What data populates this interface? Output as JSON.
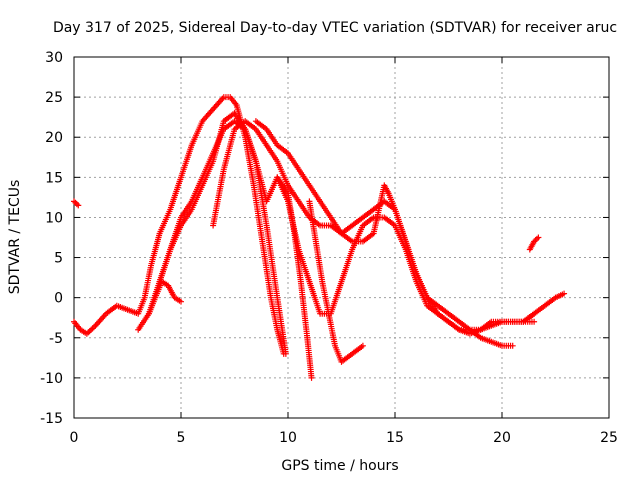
{
  "chart_data": {
    "type": "scatter",
    "title": "Day 317 of 2025, Sidereal Day-to-day VTEC variation (SDTVAR) for receiver aruc",
    "xlabel": "GPS time / hours",
    "ylabel": "SDTVAR / TECUs",
    "xlim": [
      0,
      25
    ],
    "ylim": [
      -15,
      30
    ],
    "xticks": [
      0,
      5,
      10,
      15,
      20,
      25
    ],
    "yticks": [
      -15,
      -10,
      -5,
      0,
      5,
      10,
      15,
      20,
      25,
      30
    ],
    "grid": true,
    "marker": "+",
    "color": "#ff0000",
    "series": [
      {
        "name": "s1",
        "x": [
          0.0,
          0.3,
          0.6,
          1.0,
          1.5,
          2.0,
          2.5,
          3.0,
          3.3,
          3.6,
          4.0,
          4.5,
          5.0,
          5.5,
          6.0,
          6.5,
          7.0,
          7.3,
          7.6,
          8.0,
          8.4,
          8.8,
          9.2,
          9.5,
          9.8
        ],
        "y": [
          -3,
          -4,
          -4.5,
          -3.5,
          -2,
          -1,
          -1.5,
          -2,
          0,
          4,
          8,
          11,
          15,
          19,
          22,
          23.5,
          25,
          25,
          24,
          20,
          14,
          7,
          0,
          -4,
          -7
        ]
      },
      {
        "name": "s2",
        "x": [
          3.0,
          3.5,
          4.0,
          4.5,
          5.0,
          5.5,
          6.0,
          6.5,
          7.0,
          7.5,
          8.0,
          8.5,
          9.0,
          9.5,
          10.0,
          10.3,
          10.6,
          10.9,
          11.1
        ],
        "y": [
          -4,
          -2,
          2,
          6,
          10,
          12,
          15,
          18,
          21,
          22,
          21,
          17,
          12,
          15,
          13,
          8,
          2,
          -5,
          -10
        ]
      },
      {
        "name": "s3",
        "x": [
          6.5,
          7.0,
          7.5,
          8.0,
          8.5,
          9.0,
          9.5,
          10.0,
          10.5,
          11.0,
          11.5,
          12.0,
          12.5,
          13.0,
          13.5,
          14.0,
          14.5,
          15.0,
          15.5,
          16.0,
          16.5,
          17.0,
          17.5,
          18.0,
          18.5,
          19.0,
          19.5,
          20.0,
          20.5,
          21.0,
          21.5
        ],
        "y": [
          9,
          16,
          21,
          22,
          21,
          19,
          17,
          14,
          12,
          10,
          9,
          9,
          8,
          9,
          10,
          11,
          12,
          11,
          7,
          3,
          0,
          -2,
          -3,
          -4,
          -4,
          -4,
          -3,
          -3,
          -3,
          -3,
          -2
        ]
      },
      {
        "name": "s4",
        "x": [
          8.5,
          9.0,
          9.5,
          10.0,
          10.5,
          11.0,
          11.5,
          12.0,
          12.5,
          13.0,
          13.5,
          14.0,
          14.5,
          14.7,
          15.0,
          15.5,
          16.0,
          16.5,
          17.0,
          17.5,
          18.0,
          18.5,
          19.0,
          19.5,
          20.0,
          20.5
        ],
        "y": [
          22,
          21,
          19,
          18,
          16,
          14,
          12,
          10,
          8,
          7,
          7,
          8,
          14,
          13,
          11,
          7,
          3,
          0,
          -1,
          -2,
          -3,
          -4,
          -5,
          -5.5,
          -6,
          -6
        ]
      },
      {
        "name": "s5",
        "x": [
          9.5,
          10.0,
          10.5,
          11.0,
          11.5,
          12.0,
          12.5,
          13.0,
          13.5,
          14.0,
          14.5,
          15.0,
          15.5,
          16.0,
          16.5,
          17.0,
          17.5,
          18.0,
          18.5,
          19.0,
          19.5,
          20.0,
          20.5,
          21.0,
          21.5
        ],
        "y": [
          15,
          12,
          6,
          2,
          -2,
          -2,
          2,
          6,
          9,
          10,
          10,
          9,
          6,
          2,
          -1,
          -2,
          -3,
          -4,
          -4.5,
          -4,
          -3.5,
          -3,
          -3,
          -3,
          -3
        ]
      },
      {
        "name": "s6",
        "x": [
          11.0,
          11.3,
          11.6,
          11.9,
          12.2,
          12.5,
          13.0,
          13.5
        ],
        "y": [
          12,
          7,
          2,
          -2,
          -6,
          -8,
          -7,
          -6
        ]
      },
      {
        "name": "s7",
        "x": [
          0.0,
          0.2
        ],
        "y": [
          12,
          11.5
        ]
      },
      {
        "name": "s8",
        "x": [
          21.3,
          21.5,
          21.7
        ],
        "y": [
          6,
          7,
          7.5
        ]
      },
      {
        "name": "s9",
        "x": [
          21.0,
          21.5,
          22.0,
          22.5,
          22.9
        ],
        "y": [
          -3,
          -2,
          -1,
          0,
          0.5
        ]
      },
      {
        "name": "s10",
        "x": [
          3.5,
          3.8,
          4.1,
          4.4,
          4.7,
          5.0
        ],
        "y": [
          -2,
          0,
          2,
          1.5,
          0,
          -0.5
        ]
      },
      {
        "name": "s11",
        "x": [
          4.0,
          4.5,
          5.0,
          5.5,
          6.0,
          6.5,
          7.0,
          7.5,
          8.0,
          8.5,
          9.0,
          9.5,
          9.9
        ],
        "y": [
          2,
          6,
          9,
          11,
          14,
          17,
          22,
          23,
          21,
          17,
          9,
          0,
          -7
        ]
      }
    ]
  }
}
